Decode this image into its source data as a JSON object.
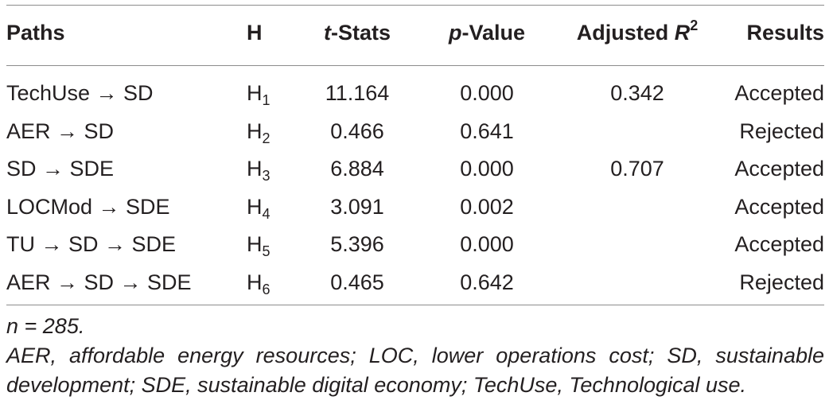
{
  "table": {
    "headers": {
      "paths": "Paths",
      "h": "H",
      "t_italic": "t",
      "t_rest": "-Stats",
      "p_italic": "p",
      "p_rest": "-Value",
      "r2_prefix": "Adjusted ",
      "r2_italic": "R",
      "r2_sup": "2",
      "results": "Results"
    },
    "rows": [
      {
        "path": "TechUse → SD",
        "h": "H",
        "h_sub": "1",
        "t": "11.164",
        "p": "0.000",
        "r2": "0.342",
        "result": "Accepted"
      },
      {
        "path": "AER → SD",
        "h": "H",
        "h_sub": "2",
        "t": "0.466",
        "p": "0.641",
        "r2": "",
        "result": "Rejected"
      },
      {
        "path": "SD → SDE",
        "h": "H",
        "h_sub": "3",
        "t": "6.884",
        "p": "0.000",
        "r2": "0.707",
        "result": "Accepted"
      },
      {
        "path": "LOCMod → SDE",
        "h": "H",
        "h_sub": "4",
        "t": "3.091",
        "p": "0.002",
        "r2": "",
        "result": "Accepted"
      },
      {
        "path": "TU → SD → SDE",
        "h": "H",
        "h_sub": "5",
        "t": "5.396",
        "p": "0.000",
        "r2": "",
        "result": "Accepted"
      },
      {
        "path": "AER → SD → SDE",
        "h": "H",
        "h_sub": "6",
        "t": "0.465",
        "p": "0.642",
        "r2": "",
        "result": "Rejected"
      }
    ]
  },
  "notes": {
    "n": "n = 285.",
    "abbreviations": "AER, affordable energy resources; LOC, lower operations cost; SD, sustainable development; SDE, sustainable digital economy; TechUse, Technological use."
  }
}
